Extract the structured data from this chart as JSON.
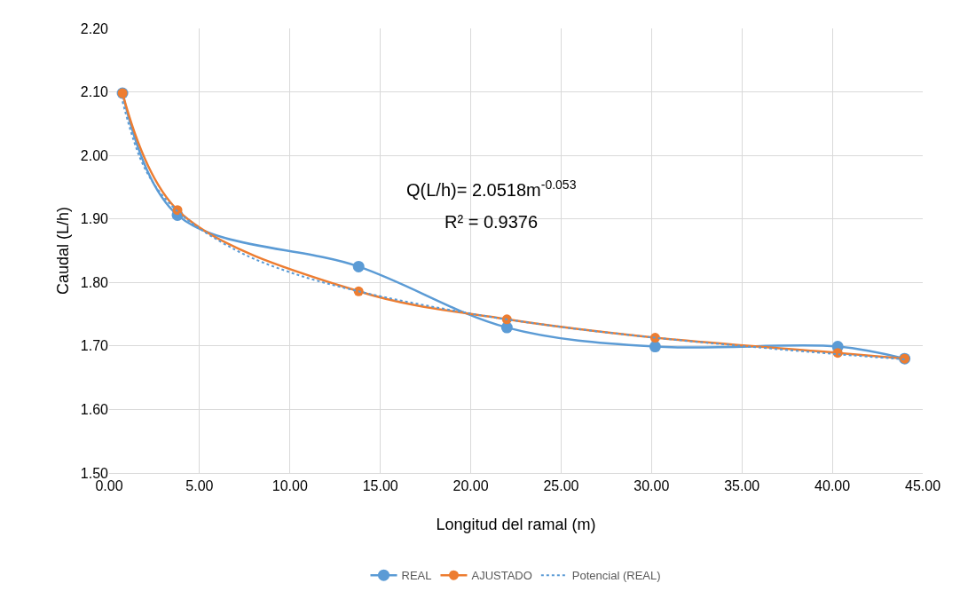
{
  "chart_data": {
    "type": "line",
    "xlabel": "Longitud del ramal (m)",
    "ylabel": "Caudal (L/h)",
    "annotations": [
      "Q(L/h)= 2.0518m$^{-0.053}$",
      "R² = 0.9376"
    ],
    "series": [
      {
        "name": "REAL",
        "color": "#5b9bd5",
        "marker": "circle",
        "line_style": "solid",
        "x": [
          0.74,
          3.78,
          13.8,
          22.0,
          30.2,
          40.3,
          44.0
        ],
        "values": [
          2.098,
          1.906,
          1.825,
          1.729,
          1.699,
          1.699,
          1.68
        ]
      },
      {
        "name": "AJUSTADO",
        "color": "#ed7d31",
        "marker": "circle",
        "line_style": "solid",
        "x": [
          0.74,
          3.78,
          13.8,
          22.0,
          30.2,
          40.3,
          44.0
        ],
        "values": [
          2.098,
          1.914,
          1.786,
          1.742,
          1.713,
          1.689,
          1.68
        ]
      },
      {
        "name": "Potencial (REAL)",
        "color": "#5b9bd5",
        "marker": "none",
        "line_style": "dotted",
        "x": [
          0.74,
          2,
          3.78,
          7,
          10,
          13.8,
          20,
          25,
          30.2,
          35,
          40.3,
          44
        ],
        "values": [
          2.085,
          1.978,
          1.912,
          1.851,
          1.816,
          1.786,
          1.751,
          1.73,
          1.713,
          1.7,
          1.687,
          1.679
        ]
      }
    ],
    "xlim": [
      0,
      45
    ],
    "xticks": [
      {
        "value": 0,
        "label": "0.00"
      },
      {
        "value": 5,
        "label": "5.00"
      },
      {
        "value": 10,
        "label": "10.00"
      },
      {
        "value": 15,
        "label": "15.00"
      },
      {
        "value": 20,
        "label": "20.00"
      },
      {
        "value": 25,
        "label": "25.00"
      },
      {
        "value": 30,
        "label": "30.00"
      },
      {
        "value": 35,
        "label": "35.00"
      },
      {
        "value": 40,
        "label": "40.00"
      },
      {
        "value": 45,
        "label": "45.00"
      }
    ],
    "ylim": [
      1.5,
      2.2
    ],
    "yticks": [
      {
        "value": 1.5,
        "label": "1.50"
      },
      {
        "value": 1.6,
        "label": "1.60"
      },
      {
        "value": 1.7,
        "label": "1.70"
      },
      {
        "value": 1.8,
        "label": "1.80"
      },
      {
        "value": 1.9,
        "label": "1.90"
      },
      {
        "value": 2.0,
        "label": "2.00"
      },
      {
        "value": 2.1,
        "label": "2.10"
      },
      {
        "value": 2.2,
        "label": "2.20"
      }
    ],
    "grid": true,
    "legend": "bottom"
  }
}
